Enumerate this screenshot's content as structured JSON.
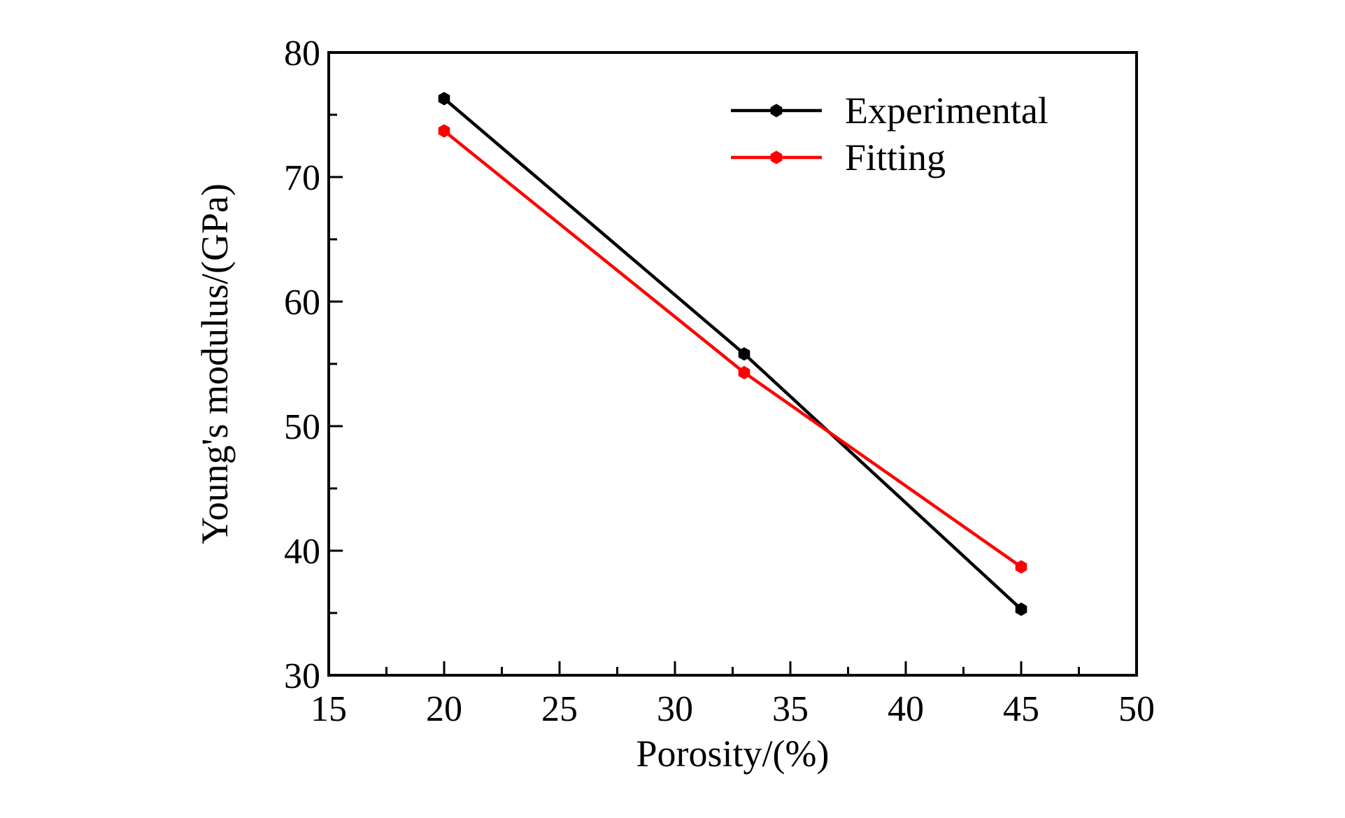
{
  "chart_data": {
    "type": "line",
    "title": "",
    "xlabel": "Porosity/(%)",
    "ylabel": "Young's modulus/(GPa)",
    "xlim": [
      15,
      50
    ],
    "ylim": [
      30,
      80
    ],
    "xticks": [
      15,
      20,
      25,
      30,
      35,
      40,
      45,
      50
    ],
    "yticks": [
      30,
      40,
      50,
      60,
      70,
      80
    ],
    "x_minor_step": 2.5,
    "y_minor_step": 5,
    "grid": false,
    "legend_position": "top-right",
    "series": [
      {
        "name": "Experimental",
        "color": "#000000",
        "x": [
          20,
          33,
          45
        ],
        "y": [
          76.3,
          55.8,
          35.3
        ]
      },
      {
        "name": "Fitting",
        "color": "#ff0000",
        "x": [
          20,
          33,
          45
        ],
        "y": [
          73.7,
          54.3,
          38.7
        ]
      }
    ]
  }
}
